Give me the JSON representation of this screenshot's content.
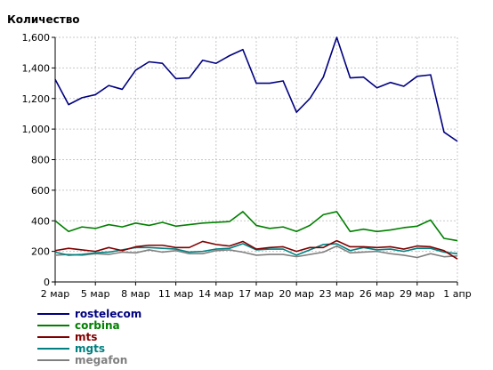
{
  "chart_data": {
    "type": "line",
    "title": "Количество",
    "xlabel": "",
    "ylabel": "",
    "ylim": [
      0,
      1600
    ],
    "yticks": [
      0,
      200,
      400,
      600,
      800,
      1000,
      1200,
      1400,
      1600
    ],
    "ytick_labels": [
      "0",
      "200",
      "400",
      "600",
      "800",
      "1,000",
      "1,200",
      "1,400",
      "1,600"
    ],
    "x": [
      "2 мар",
      "3 мар",
      "4 мар",
      "5 мар",
      "6 мар",
      "7 мар",
      "8 мар",
      "9 мар",
      "10 мар",
      "11 мар",
      "12 мар",
      "13 мар",
      "14 мар",
      "15 мар",
      "16 мар",
      "17 мар",
      "18 мар",
      "19 мар",
      "20 мар",
      "21 мар",
      "22 мар",
      "23 мар",
      "24 мар",
      "25 мар",
      "26 мар",
      "27 мар",
      "28 мар",
      "29 мар",
      "30 мар",
      "31 мар",
      "1 апр"
    ],
    "xtick_labels": [
      "2 мар",
      "5 мар",
      "8 мар",
      "11 мар",
      "14 мар",
      "17 мар",
      "20 мар",
      "23 мар",
      "26 мар",
      "29 мар",
      "1 апр"
    ],
    "grid": true,
    "legend_position": "bottom-left",
    "series": [
      {
        "name": "rostelecom",
        "color": "#000080",
        "values": [
          1325,
          1160,
          1205,
          1225,
          1285,
          1260,
          1385,
          1440,
          1430,
          1330,
          1335,
          1450,
          1430,
          1480,
          1520,
          1300,
          1300,
          1315,
          1110,
          1200,
          1340,
          1600,
          1335,
          1340,
          1270,
          1305,
          1280,
          1345,
          1355,
          980,
          920
        ]
      },
      {
        "name": "corbina",
        "color": "#008000",
        "values": [
          400,
          330,
          360,
          350,
          375,
          360,
          385,
          370,
          390,
          365,
          375,
          385,
          390,
          395,
          460,
          370,
          350,
          360,
          330,
          370,
          440,
          460,
          330,
          345,
          330,
          340,
          355,
          365,
          405,
          285,
          270
        ]
      },
      {
        "name": "mts",
        "color": "#800000",
        "values": [
          205,
          220,
          210,
          200,
          225,
          205,
          230,
          240,
          240,
          225,
          225,
          265,
          245,
          235,
          265,
          215,
          225,
          230,
          200,
          225,
          225,
          270,
          230,
          230,
          225,
          230,
          215,
          235,
          230,
          205,
          150
        ]
      },
      {
        "name": "mgts",
        "color": "#008080",
        "values": [
          195,
          175,
          180,
          190,
          195,
          210,
          225,
          225,
          220,
          215,
          195,
          200,
          215,
          220,
          250,
          210,
          215,
          215,
          175,
          210,
          245,
          250,
          205,
          225,
          210,
          215,
          200,
          220,
          220,
          195,
          185
        ]
      },
      {
        "name": "megafon",
        "color": "#808080",
        "values": [
          175,
          180,
          175,
          185,
          180,
          195,
          190,
          210,
          195,
          205,
          185,
          185,
          205,
          210,
          195,
          175,
          180,
          180,
          165,
          180,
          195,
          235,
          190,
          195,
          200,
          185,
          175,
          160,
          185,
          165,
          170
        ]
      }
    ]
  }
}
